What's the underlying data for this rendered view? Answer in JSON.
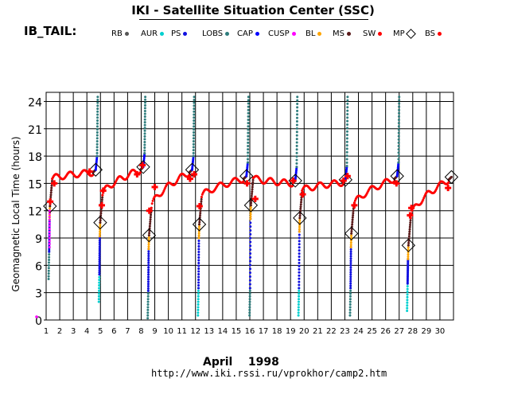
{
  "header": {
    "title": "IKI - Satellite Situation Center (SSC)",
    "satellite": "IB_TAIL:"
  },
  "legend": [
    {
      "label": "RB",
      "color": "#555555",
      "shape": "dot"
    },
    {
      "label": "AUR",
      "color": "#00d0d0",
      "shape": "dot"
    },
    {
      "label": "PS",
      "color": "#1010e0",
      "shape": "dot"
    },
    {
      "label": "LOBS",
      "color": "#2e7d7d",
      "shape": "dot"
    },
    {
      "label": "CAP",
      "color": "#0000ff",
      "shape": "dot"
    },
    {
      "label": "CUSP",
      "color": "#ff00ff",
      "shape": "dot"
    },
    {
      "label": "BL",
      "color": "#ffa500",
      "shape": "dot"
    },
    {
      "label": "MS",
      "color": "#5a1a1a",
      "shape": "dot"
    },
    {
      "label": "SW",
      "color": "#ff0000",
      "shape": "dot"
    },
    {
      "label": "MP",
      "color": "#000000",
      "shape": "diamond"
    },
    {
      "label": "BS",
      "color": "#ff0000",
      "shape": "dot"
    }
  ],
  "footer": {
    "month": "April",
    "year": "1998",
    "url": "http://www.iki.rssi.ru/vprokhor/camp2.htm"
  },
  "chart_data": {
    "type": "scatter",
    "ylabel": "Geomagnetic  Local  Time  (hours)",
    "xlim": [
      1,
      31
    ],
    "ylim": [
      0,
      25
    ],
    "yticks": [
      0,
      3,
      6,
      9,
      12,
      15,
      18,
      21,
      24
    ],
    "xticks": [
      1,
      2,
      3,
      4,
      5,
      6,
      7,
      8,
      9,
      10,
      11,
      12,
      13,
      14,
      15,
      16,
      17,
      18,
      19,
      20,
      21,
      22,
      23,
      24,
      25,
      26,
      27,
      28,
      29,
      30
    ],
    "grid": true,
    "orbits": [
      {
        "start": 1.0,
        "end": 4.8,
        "perigee": 1.2,
        "low": 4.5,
        "mp_in": 12.5,
        "mp_out": 16.5,
        "cap_top": 24.5
      },
      {
        "start": 4.8,
        "end": 8.3,
        "perigee": 4.9,
        "low": 2.0,
        "mp_in": 10.7,
        "mp_out": 16.8,
        "cap_top": 24.5
      },
      {
        "start": 8.3,
        "end": 11.9,
        "perigee": 8.5,
        "low": 0.2,
        "mp_in": 9.3,
        "mp_out": 16.5,
        "cap_top": 24.5
      },
      {
        "start": 11.9,
        "end": 15.9,
        "perigee": 12.2,
        "low": 0.5,
        "mp_in": 10.5,
        "mp_out": 15.8,
        "cap_top": 24.5
      },
      {
        "start": 15.9,
        "end": 19.5,
        "perigee": 16.0,
        "low": 0.5,
        "mp_in": 12.6,
        "mp_out": 15.3,
        "cap_top": 24.5
      },
      {
        "start": 19.5,
        "end": 23.2,
        "perigee": 19.6,
        "low": 0.5,
        "mp_in": 11.2,
        "mp_out": 15.4,
        "cap_top": 24.5
      },
      {
        "start": 23.2,
        "end": 27.0,
        "perigee": 23.4,
        "low": 0.5,
        "mp_in": 9.5,
        "mp_out": 15.8,
        "cap_top": 24.5
      },
      {
        "start": 27.0,
        "end": 31.0,
        "perigee": 27.6,
        "low": 1.0,
        "mp_in": 8.2,
        "mp_out": 15.7,
        "cap_top": 24.5
      }
    ],
    "bow_shock": [
      {
        "x": 1.3,
        "y": 13.0
      },
      {
        "x": 1.6,
        "y": 15.0
      },
      {
        "x": 4.2,
        "y": 16.3
      },
      {
        "x": 5.1,
        "y": 12.6
      },
      {
        "x": 5.2,
        "y": 14.2
      },
      {
        "x": 7.7,
        "y": 16.0
      },
      {
        "x": 8.1,
        "y": 17.0
      },
      {
        "x": 8.6,
        "y": 12.0
      },
      {
        "x": 9.0,
        "y": 14.6
      },
      {
        "x": 11.6,
        "y": 15.5
      },
      {
        "x": 11.9,
        "y": 16.0
      },
      {
        "x": 12.3,
        "y": 12.5
      },
      {
        "x": 15.8,
        "y": 15.0
      },
      {
        "x": 16.4,
        "y": 13.3
      },
      {
        "x": 19.2,
        "y": 15.3
      },
      {
        "x": 19.9,
        "y": 13.8
      },
      {
        "x": 22.9,
        "y": 15.3
      },
      {
        "x": 23.2,
        "y": 15.8
      },
      {
        "x": 23.7,
        "y": 12.6
      },
      {
        "x": 26.8,
        "y": 15.0
      },
      {
        "x": 27.8,
        "y": 11.5
      },
      {
        "x": 27.9,
        "y": 12.3
      },
      {
        "x": 30.6,
        "y": 14.5
      }
    ]
  }
}
